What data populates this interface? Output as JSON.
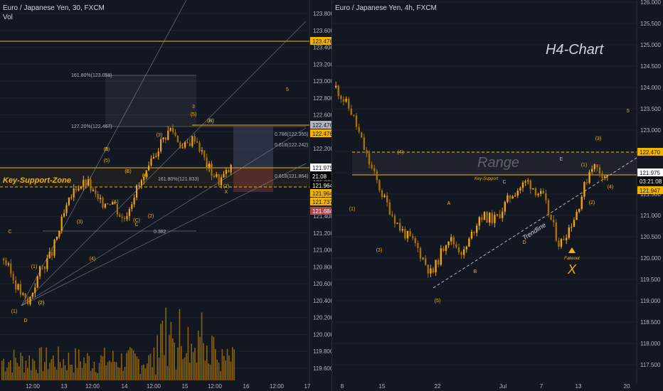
{
  "colors": {
    "bg": "#131722",
    "candle": "#f0a30a",
    "candle_dark": "#a86e00",
    "level": "#f0b400",
    "grid": "#1e222d",
    "axis_text": "#b2b5be"
  },
  "left_chart": {
    "title": "Euro / Japanese Yen, 30, FXCM",
    "sub": "Vol",
    "y_ticks": [
      "123.800",
      "123.600",
      "123.400",
      "123.200",
      "123.000",
      "122.800",
      "122.600",
      "122.400",
      "122.200",
      "122.000",
      "121.800",
      "121.600",
      "121.400",
      "121.200",
      "121.000",
      "120.800",
      "120.600",
      "120.400",
      "120.200",
      "120.000",
      "119.800",
      "119.600"
    ],
    "x_ticks": [
      "12:00",
      "13",
      "12:00",
      "14",
      "12:00",
      "15",
      "12:00",
      "16",
      "12:00",
      "17"
    ],
    "price_tags": [
      {
        "text": "123.476",
        "kind": "gold"
      },
      {
        "text": "122.476",
        "kind": "gray"
      },
      {
        "text": "122.476",
        "kind": "gold"
      },
      {
        "text": "121.975",
        "kind": "white"
      },
      {
        "text": "21:08",
        "kind": "black"
      },
      {
        "text": "121.964",
        "kind": "black"
      },
      {
        "text": "121.964",
        "kind": "gold"
      },
      {
        "text": "121.737",
        "kind": "gold"
      },
      {
        "text": "121.684",
        "kind": "red"
      }
    ],
    "key_support_label": "Key-Support-Zone",
    "fib_labels": [
      "161.80%(123.058)",
      "127.20%(122.467)",
      "161.80%(121.833)",
      "0.786(122.355)",
      "0.618(122.242)",
      "0.618(121.864)",
      "0.382"
    ],
    "wave_labels": [
      "5",
      "3",
      "(5)",
      "(B)",
      "(3)",
      "(1)",
      "(5)",
      "(B)",
      "(A)",
      "(4)",
      "(1)",
      "(3)",
      "(2)",
      "(4)",
      "(2)",
      "(1)",
      "C",
      "D",
      "(A)",
      "(C)",
      "(2)",
      "B",
      "X",
      "C",
      "(2)",
      "(B)"
    ]
  },
  "right_chart": {
    "title": "Euro / Japanese Yen, 4h, FXCM",
    "heading": "H4-Chart",
    "range_label": "Range",
    "key_support": "Key-Support",
    "trendline": "Trendline",
    "fakeout": "Fakeout",
    "x_mark": "X",
    "y_ticks": [
      "126.000",
      "125.500",
      "125.000",
      "124.500",
      "124.000",
      "123.500",
      "123.000",
      "122.500",
      "122.000",
      "121.500",
      "121.000",
      "120.500",
      "120.000",
      "119.500",
      "119.000",
      "118.500",
      "118.000",
      "117.500"
    ],
    "x_ticks": [
      "8",
      "15",
      "22",
      "Jul",
      "7",
      "13",
      "20"
    ],
    "price_tags": [
      {
        "text": "122.470",
        "kind": "gold"
      },
      {
        "text": "121.975",
        "kind": "white"
      },
      {
        "text": "03:21:08",
        "kind": "black"
      },
      {
        "text": "121.947",
        "kind": "gold"
      }
    ],
    "wave_labels": [
      "(4)",
      "(1)",
      "(3)",
      "A",
      "B",
      "(5)",
      "C",
      "E",
      "D",
      "(1)",
      "(3)",
      "(2)",
      "(4)",
      "5"
    ]
  },
  "chart_data": [
    {
      "type": "candlestick",
      "title": "Euro / Japanese Yen, 30, FXCM",
      "ylim": [
        119.45,
        123.95
      ],
      "x": [
        "12:00",
        "13",
        "12:00",
        "14",
        "12:00",
        "15",
        "12:00",
        "16",
        "12:00",
        "17"
      ],
      "close_path": [
        120.9,
        120.6,
        120.35,
        120.75,
        120.95,
        121.4,
        121.75,
        121.8,
        121.55,
        121.6,
        121.35,
        121.7,
        121.9,
        122.25,
        122.45,
        122.2,
        122.35,
        122.0,
        121.82,
        121.97
      ],
      "levels": [
        123.476,
        122.476,
        121.964
      ]
    },
    {
      "type": "candlestick",
      "title": "Euro / Japanese Yen, 4h, FXCM",
      "ylim": [
        117.3,
        126.1
      ],
      "x": [
        "8",
        "15",
        "22",
        "Jul",
        "7",
        "13",
        "20"
      ],
      "close_path": [
        124.0,
        123.4,
        122.3,
        121.4,
        120.7,
        120.3,
        119.6,
        120.5,
        120.1,
        121.0,
        120.9,
        121.5,
        121.8,
        121.4,
        120.3,
        121.0,
        122.2,
        121.9
      ],
      "levels": [
        122.47,
        121.947
      ]
    }
  ]
}
